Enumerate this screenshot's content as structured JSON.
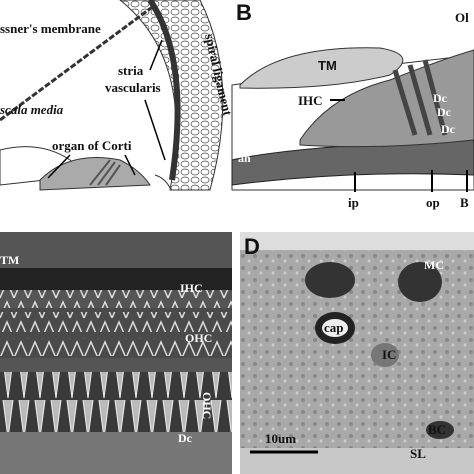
{
  "panels": [
    {
      "labels": [
        "ssner's membrane",
        "stria",
        "vascularis",
        "spiral ligament",
        "scala media",
        "organ of Corti"
      ]
    },
    {
      "letter": "B",
      "labels": [
        "TM",
        "Ol",
        "IHC",
        "Dc",
        "Dc",
        "Dc",
        "an",
        "ip",
        "op",
        "B"
      ]
    },
    {
      "labels": [
        "TM",
        "IHC",
        "OHC",
        "OHC",
        "Dc"
      ]
    },
    {
      "letter": "D",
      "labels": [
        "MC",
        "cap",
        "IC",
        "BC",
        "SL",
        "10um"
      ]
    }
  ]
}
